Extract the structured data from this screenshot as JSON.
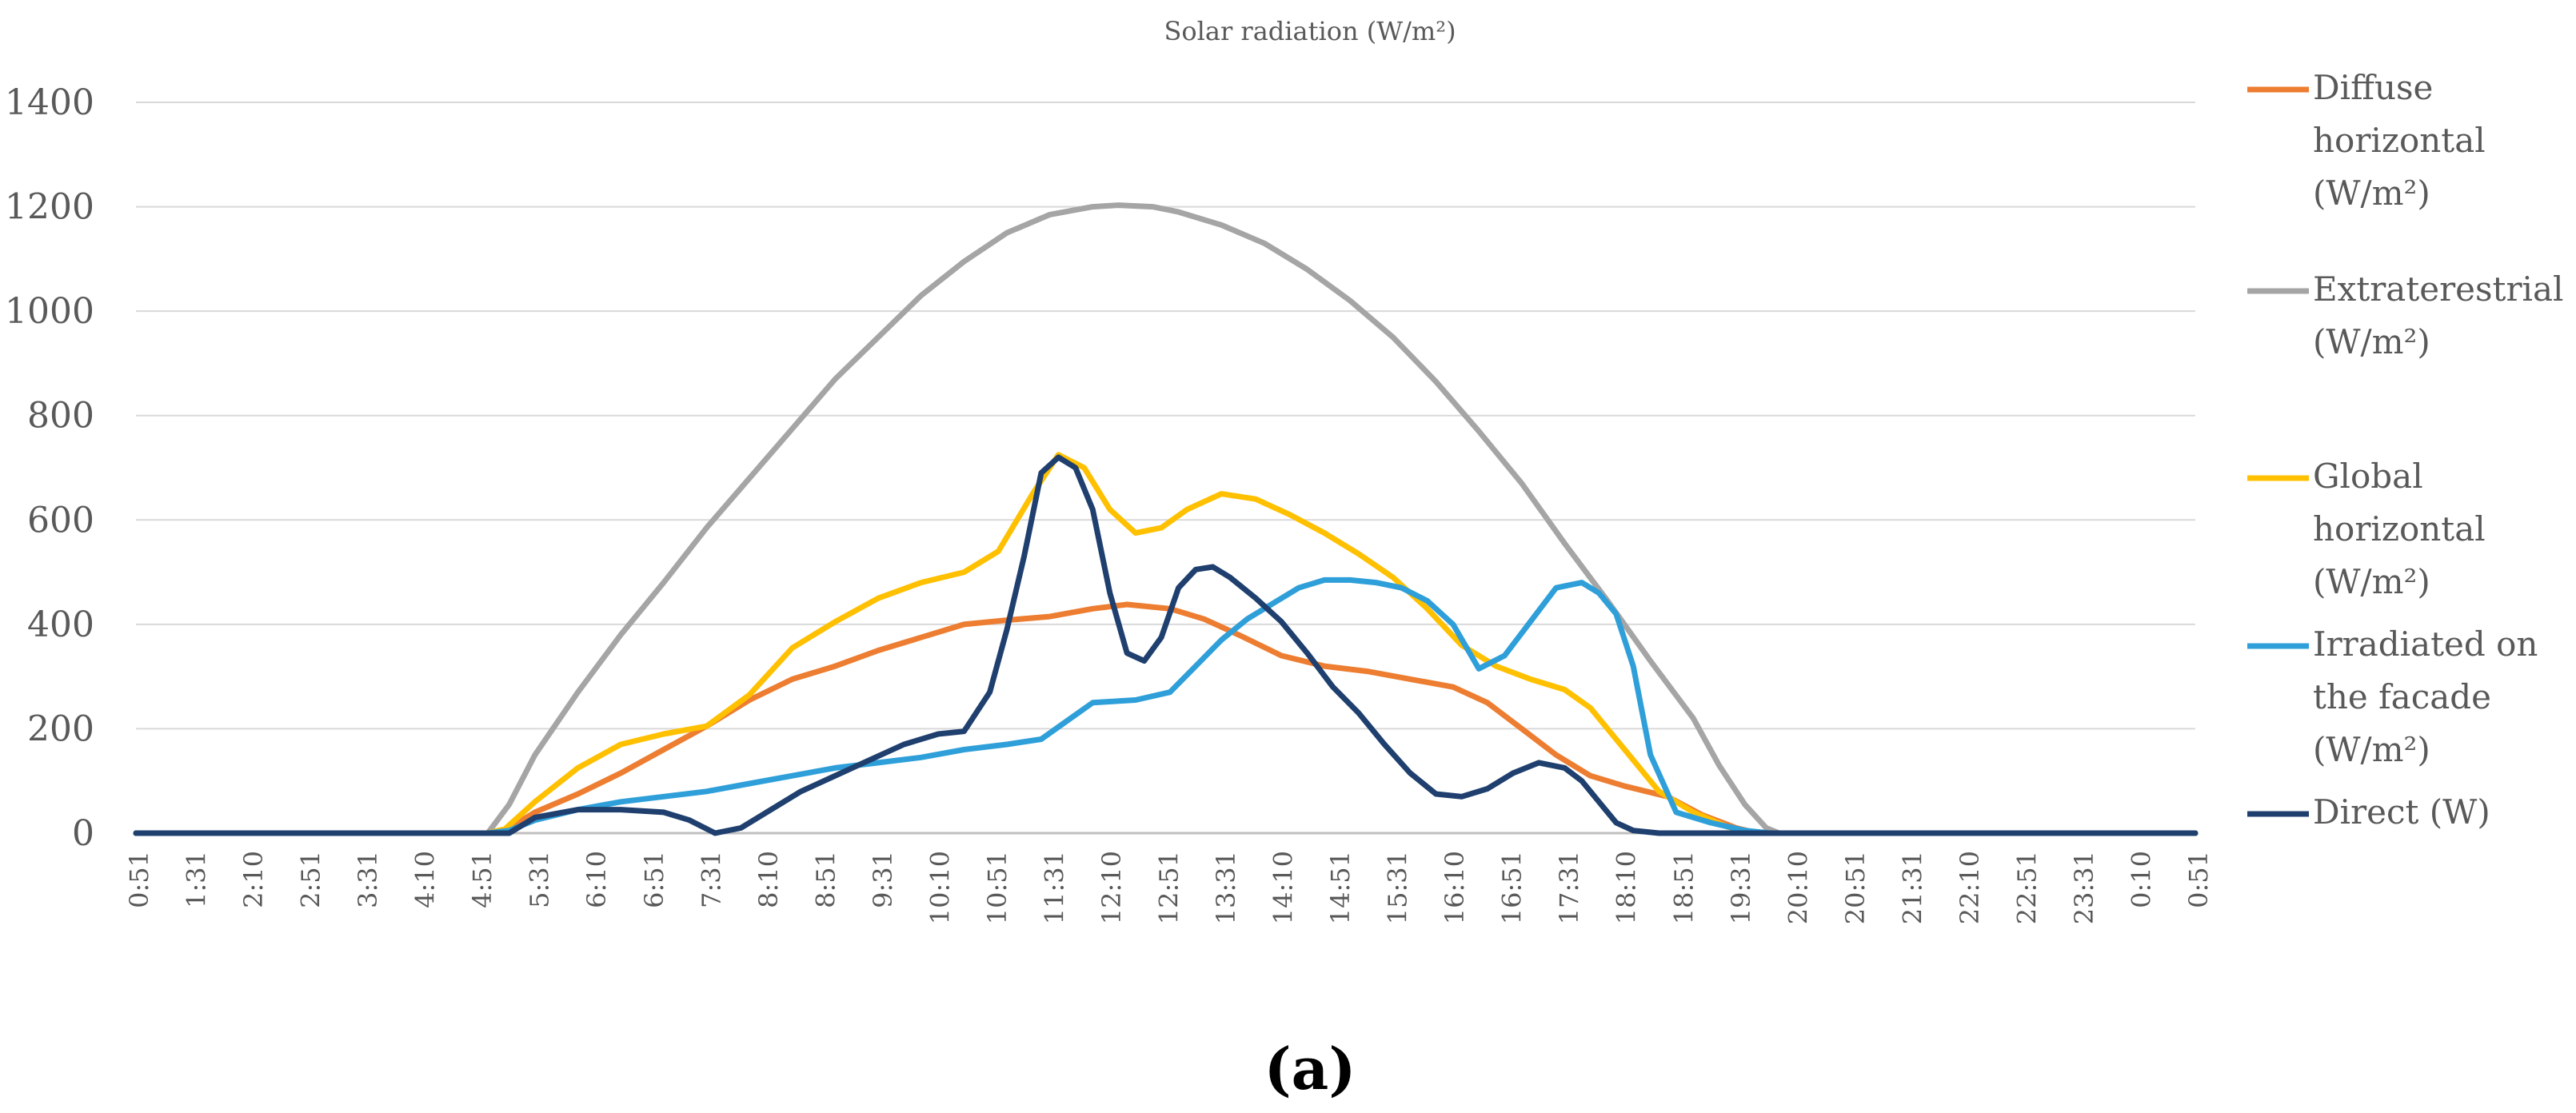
{
  "caption": "(a)",
  "chart_data": {
    "type": "line",
    "title": "Solar radiation (W/m²)",
    "xlabel": "",
    "ylabel": "",
    "ylim": [
      0,
      1400
    ],
    "yticks": [
      0,
      200,
      400,
      600,
      800,
      1000,
      1200,
      1400
    ],
    "xtick_labels": [
      "0:51",
      "1:31",
      "2:10",
      "2:51",
      "3:31",
      "4:10",
      "4:51",
      "5:31",
      "6:10",
      "6:51",
      "7:31",
      "8:10",
      "8:51",
      "9:31",
      "10:10",
      "10:51",
      "11:31",
      "12:10",
      "12:51",
      "13:31",
      "14:10",
      "14:51",
      "15:31",
      "16:10",
      "16:51",
      "17:31",
      "18:10",
      "18:51",
      "19:31",
      "20:10",
      "20:51",
      "21:31",
      "22:10",
      "22:51",
      "23:31",
      "0:10",
      "0:51"
    ],
    "x_range_hours": [
      0.85,
      24.85
    ],
    "grid": true,
    "legend_position": "right",
    "series": [
      {
        "name": "Diffuse horizontal (W/m²)",
        "legend_lines": [
          "Diffuse",
          "horizontal",
          "(W/m²)"
        ],
        "color": "#ED7D31",
        "x": [
          0.85,
          4.95,
          5.15,
          5.5,
          6.0,
          6.5,
          7.0,
          7.5,
          8.0,
          8.5,
          9.0,
          9.5,
          10.0,
          10.5,
          11.0,
          11.5,
          12.0,
          12.4,
          12.9,
          13.3,
          13.7,
          14.2,
          14.7,
          15.2,
          15.7,
          16.2,
          16.6,
          17.0,
          17.4,
          17.8,
          18.2,
          18.7,
          19.1,
          19.5,
          19.75,
          24.85
        ],
        "y": [
          0,
          0,
          5,
          40,
          75,
          115,
          160,
          205,
          255,
          295,
          320,
          350,
          375,
          400,
          408,
          415,
          430,
          438,
          430,
          410,
          380,
          340,
          320,
          310,
          295,
          280,
          250,
          200,
          150,
          110,
          90,
          70,
          35,
          10,
          0,
          0
        ]
      },
      {
        "name": "Extraterestrial (W/m²)",
        "legend_lines": [
          "Extraterestrial",
          "(W/m²)"
        ],
        "color": "#A5A5A5",
        "x": [
          0.85,
          4.95,
          5.2,
          5.5,
          6.0,
          6.5,
          7.0,
          7.5,
          8.0,
          8.5,
          9.0,
          9.5,
          10.0,
          10.5,
          11.0,
          11.5,
          12.0,
          12.3,
          12.7,
          13.0,
          13.5,
          14.0,
          14.5,
          15.0,
          15.5,
          16.0,
          16.5,
          17.0,
          17.5,
          18.0,
          18.5,
          19.0,
          19.3,
          19.6,
          19.85,
          20.0,
          24.85
        ],
        "y": [
          0,
          0,
          55,
          150,
          270,
          380,
          480,
          585,
          680,
          775,
          870,
          950,
          1030,
          1095,
          1150,
          1185,
          1200,
          1203,
          1200,
          1190,
          1165,
          1130,
          1080,
          1020,
          950,
          865,
          770,
          670,
          555,
          445,
          330,
          220,
          130,
          55,
          10,
          0,
          0
        ]
      },
      {
        "name": "Global horizontal (W/m²)",
        "legend_lines": [
          "Global",
          "horizontal",
          "(W/m²)"
        ],
        "color": "#FFC000",
        "x": [
          0.85,
          4.95,
          5.15,
          5.5,
          6.0,
          6.5,
          7.0,
          7.5,
          8.0,
          8.5,
          9.0,
          9.5,
          10.0,
          10.5,
          10.9,
          11.3,
          11.6,
          11.9,
          12.2,
          12.5,
          12.8,
          13.1,
          13.5,
          13.9,
          14.3,
          14.7,
          15.1,
          15.5,
          15.9,
          16.3,
          16.7,
          17.1,
          17.5,
          17.8,
          18.2,
          18.6,
          19.0,
          19.4,
          19.7,
          24.85
        ],
        "y": [
          0,
          0,
          8,
          60,
          125,
          170,
          190,
          205,
          265,
          355,
          405,
          450,
          480,
          500,
          540,
          650,
          725,
          700,
          620,
          575,
          585,
          620,
          650,
          640,
          610,
          575,
          535,
          490,
          430,
          360,
          320,
          295,
          275,
          240,
          160,
          80,
          40,
          12,
          0,
          0
        ]
      },
      {
        "name": "Irradiated on the facade (W/m²)",
        "legend_lines": [
          "Irradiated on",
          "the facade",
          "(W/m²)"
        ],
        "color": "#2E9FD9",
        "x": [
          0.85,
          4.95,
          5.2,
          5.5,
          6.0,
          6.5,
          7.0,
          7.5,
          8.0,
          8.5,
          9.0,
          9.5,
          10.0,
          10.5,
          11.0,
          11.4,
          11.7,
          12.0,
          12.5,
          12.9,
          13.2,
          13.5,
          13.8,
          14.1,
          14.4,
          14.7,
          15.0,
          15.3,
          15.6,
          15.9,
          16.2,
          16.5,
          16.8,
          17.1,
          17.4,
          17.7,
          17.9,
          18.1,
          18.3,
          18.5,
          18.8,
          19.2,
          19.6,
          19.9,
          24.85
        ],
        "y": [
          0,
          0,
          5,
          25,
          45,
          60,
          70,
          80,
          95,
          110,
          125,
          135,
          145,
          160,
          170,
          180,
          215,
          250,
          255,
          270,
          320,
          370,
          410,
          440,
          470,
          485,
          485,
          480,
          470,
          445,
          400,
          315,
          340,
          405,
          470,
          480,
          460,
          420,
          320,
          150,
          40,
          20,
          5,
          0,
          0
        ]
      },
      {
        "name": "Direct (W)",
        "legend_lines": [
          "Direct (W)"
        ],
        "color": "#1F3F6E",
        "x": [
          0.85,
          5.2,
          5.5,
          6.0,
          6.5,
          7.0,
          7.3,
          7.6,
          7.9,
          8.2,
          8.6,
          9.0,
          9.4,
          9.8,
          10.2,
          10.5,
          10.8,
          11.0,
          11.2,
          11.4,
          11.6,
          11.8,
          12.0,
          12.2,
          12.4,
          12.6,
          12.8,
          13.0,
          13.2,
          13.4,
          13.6,
          13.9,
          14.2,
          14.5,
          14.8,
          15.1,
          15.4,
          15.7,
          16.0,
          16.3,
          16.6,
          16.9,
          17.2,
          17.5,
          17.7,
          17.9,
          18.1,
          18.3,
          18.6,
          18.9,
          24.85
        ],
        "y": [
          0,
          0,
          30,
          45,
          45,
          40,
          25,
          0,
          10,
          40,
          80,
          110,
          140,
          170,
          190,
          195,
          270,
          390,
          530,
          690,
          720,
          700,
          620,
          460,
          345,
          330,
          375,
          470,
          505,
          510,
          490,
          450,
          405,
          345,
          280,
          230,
          170,
          115,
          75,
          70,
          85,
          115,
          135,
          125,
          100,
          60,
          20,
          5,
          0,
          0,
          0
        ]
      }
    ]
  }
}
